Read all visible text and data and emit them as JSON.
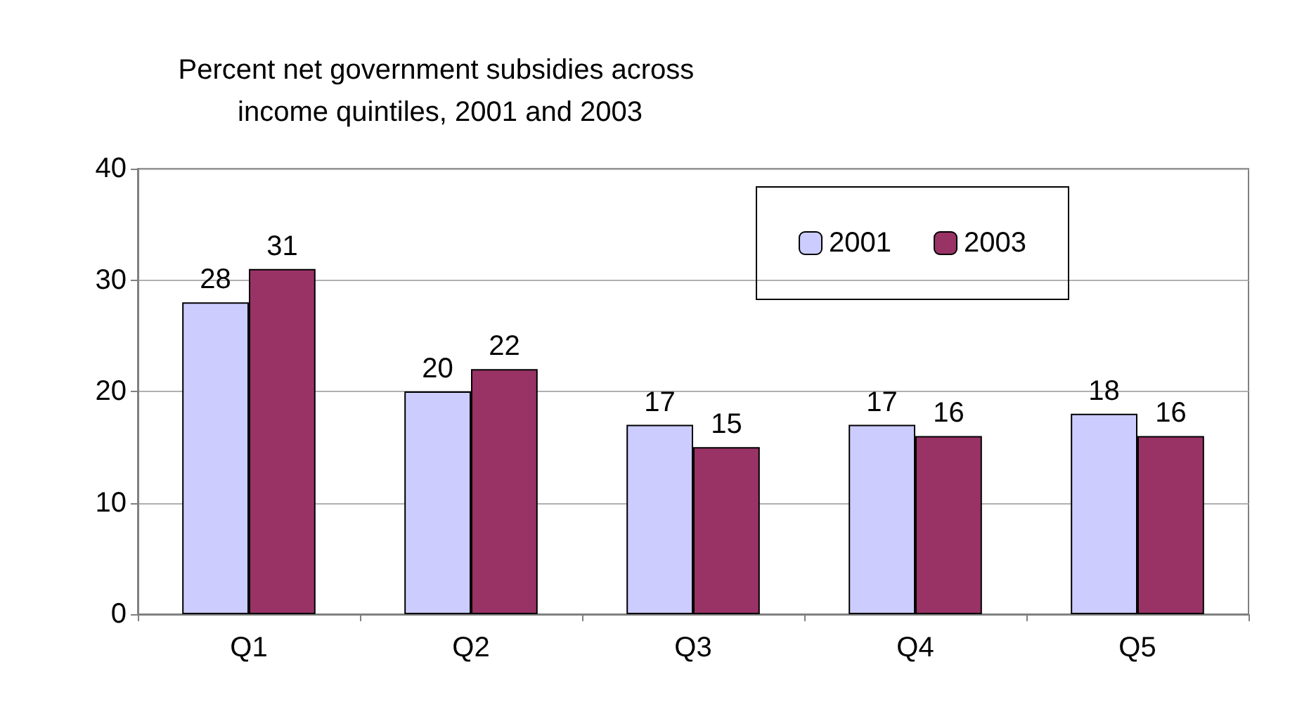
{
  "chart_data": {
    "type": "bar",
    "title": "Percent net government subsidies across income quintiles, 2001 and 2003",
    "categories": [
      "Q1",
      "Q2",
      "Q3",
      "Q4",
      "Q5"
    ],
    "series": [
      {
        "name": "2001",
        "color": "#ccccff",
        "values": [
          28,
          20,
          17,
          17,
          18
        ]
      },
      {
        "name": "2003",
        "color": "#993366",
        "values": [
          31,
          22,
          15,
          16,
          16
        ]
      }
    ],
    "ylim": [
      0,
      40
    ],
    "yticks": [
      0,
      10,
      20,
      30,
      40
    ],
    "grid": "y",
    "legend": "top right",
    "data_labels": true
  }
}
